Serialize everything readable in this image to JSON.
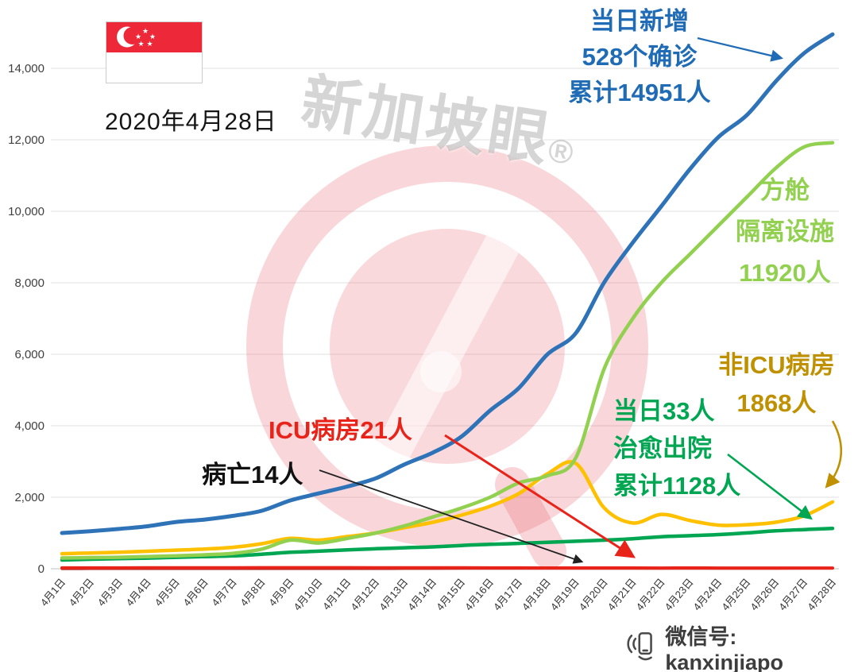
{
  "page": {
    "date": "2020年4月28日",
    "wechat": "微信号: kanxinjiapo"
  },
  "watermark": {
    "text": "新加坡眼",
    "reg": "®"
  },
  "annotations": {
    "confirmed": {
      "text": "当日新增\n528个确诊\n累计14951人",
      "color": "#1f6bb5"
    },
    "facility": {
      "text": "方舱\n隔离设施\n11920人",
      "color": "#92d050"
    },
    "non_icu": {
      "text": "非ICU病房\n1868人",
      "color": "#bf9000"
    },
    "discharged": {
      "text": "当日33人\n治愈出院\n累计1128人",
      "color": "#00a651"
    },
    "icu": {
      "text": "ICU病房21人",
      "color": "#e8231a"
    },
    "deaths": {
      "text": "病亡14人",
      "color": "#111111"
    }
  },
  "chart_data": {
    "type": "line",
    "title": "",
    "x_categories": [
      "4月1日",
      "4月2日",
      "4月3日",
      "4月4日",
      "4月5日",
      "4月6日",
      "4月7日",
      "4月8日",
      "4月9日",
      "4月10日",
      "4月11日",
      "4月12日",
      "4月13日",
      "4月14日",
      "4月15日",
      "4月16日",
      "4月17日",
      "4月18日",
      "4月19日",
      "4月20日",
      "4月21日",
      "4月22日",
      "4月23日",
      "4月24日",
      "4月25日",
      "4月26日",
      "4月27日",
      "4月28日"
    ],
    "y_ticks": [
      0,
      2000,
      4000,
      6000,
      8000,
      10000,
      12000,
      14000
    ],
    "y_tick_labels": [
      "0",
      "2,000",
      "4,000",
      "6,000",
      "8,000",
      "10,000",
      "12,000",
      "14,000"
    ],
    "ylim": [
      0,
      15500
    ],
    "grid": true,
    "legend": "none",
    "series": [
      {
        "id": "confirmed",
        "name": "累计确诊",
        "color": "#2e73b8",
        "width": 5,
        "values": [
          1000,
          1049,
          1114,
          1189,
          1309,
          1375,
          1481,
          1623,
          1910,
          2108,
          2299,
          2532,
          2918,
          3252,
          3699,
          4427,
          5050,
          5992,
          6588,
          8014,
          9125,
          10141,
          11178,
          12075,
          12693,
          13624,
          14423,
          14951
        ]
      },
      {
        "id": "facility",
        "name": "方舱隔离设施",
        "color": "#92d050",
        "width": 4.5,
        "values": [
          300,
          310,
          320,
          340,
          360,
          390,
          430,
          550,
          800,
          720,
          850,
          1000,
          1200,
          1450,
          1700,
          2000,
          2400,
          2600,
          3100,
          5600,
          7000,
          8000,
          8800,
          9600,
          10400,
          11200,
          11800,
          11920
        ]
      },
      {
        "id": "non_icu",
        "name": "非ICU病房",
        "color": "#ffc000",
        "width": 4.5,
        "values": [
          420,
          440,
          460,
          490,
          520,
          550,
          600,
          700,
          850,
          800,
          900,
          1000,
          1150,
          1300,
          1500,
          1750,
          2100,
          2650,
          2950,
          1700,
          1280,
          1520,
          1350,
          1220,
          1230,
          1300,
          1480,
          1868
        ]
      },
      {
        "id": "discharged",
        "name": "累计治愈出院",
        "color": "#00a651",
        "width": 4.5,
        "values": [
          245,
          266,
          282,
          297,
          320,
          339,
          361,
          406,
          460,
          492,
          528,
          560,
          586,
          611,
          652,
          683,
          708,
          740,
          768,
          801,
          839,
          896,
          924,
          956,
          1002,
          1060,
          1095,
          1128
        ]
      },
      {
        "id": "icu",
        "name": "ICU病房",
        "color": "#e8231a",
        "width": 4,
        "values": [
          24,
          25,
          25,
          26,
          27,
          28,
          29,
          30,
          31,
          32,
          31,
          29,
          28,
          27,
          26,
          25,
          24,
          23,
          22,
          23,
          22,
          21,
          22,
          21,
          21,
          21,
          20,
          21
        ]
      },
      {
        "id": "deaths",
        "name": "累计病亡",
        "color": "#9e1b1b",
        "width": 3.5,
        "values": [
          3,
          4,
          4,
          5,
          6,
          6,
          6,
          6,
          6,
          6,
          7,
          7,
          8,
          9,
          10,
          10,
          10,
          11,
          11,
          11,
          12,
          12,
          12,
          12,
          12,
          12,
          14,
          14
        ]
      }
    ]
  }
}
